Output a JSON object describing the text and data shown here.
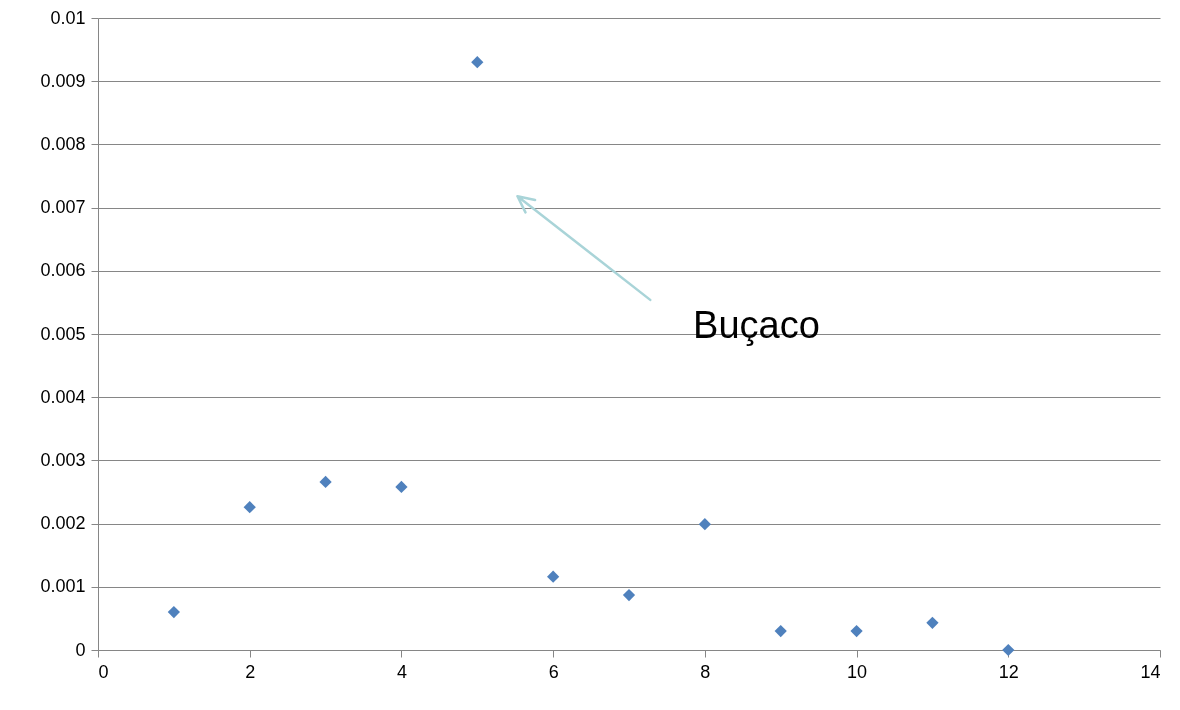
{
  "chart_data": {
    "type": "scatter",
    "marker": "diamond",
    "grid": "y",
    "x": [
      1,
      2,
      3,
      4,
      5,
      6,
      7,
      8,
      9,
      10,
      11,
      12
    ],
    "values": [
      0.0006,
      0.00226,
      0.00266,
      0.00258,
      0.0093,
      0.00116,
      0.00087,
      0.00199,
      0.0003,
      0.0003,
      0.00043,
      0
    ],
    "color": "#4f81bd",
    "xlim": [
      0,
      14
    ],
    "xticks": [
      0,
      2,
      4,
      6,
      8,
      10,
      12,
      14
    ],
    "ylim": [
      0,
      0.01
    ],
    "yticks": [
      0,
      0.001,
      0.002,
      0.003,
      0.004,
      0.005,
      0.006,
      0.007,
      0.008,
      0.009,
      0.01
    ],
    "annotations": [
      "Buçaco"
    ]
  }
}
